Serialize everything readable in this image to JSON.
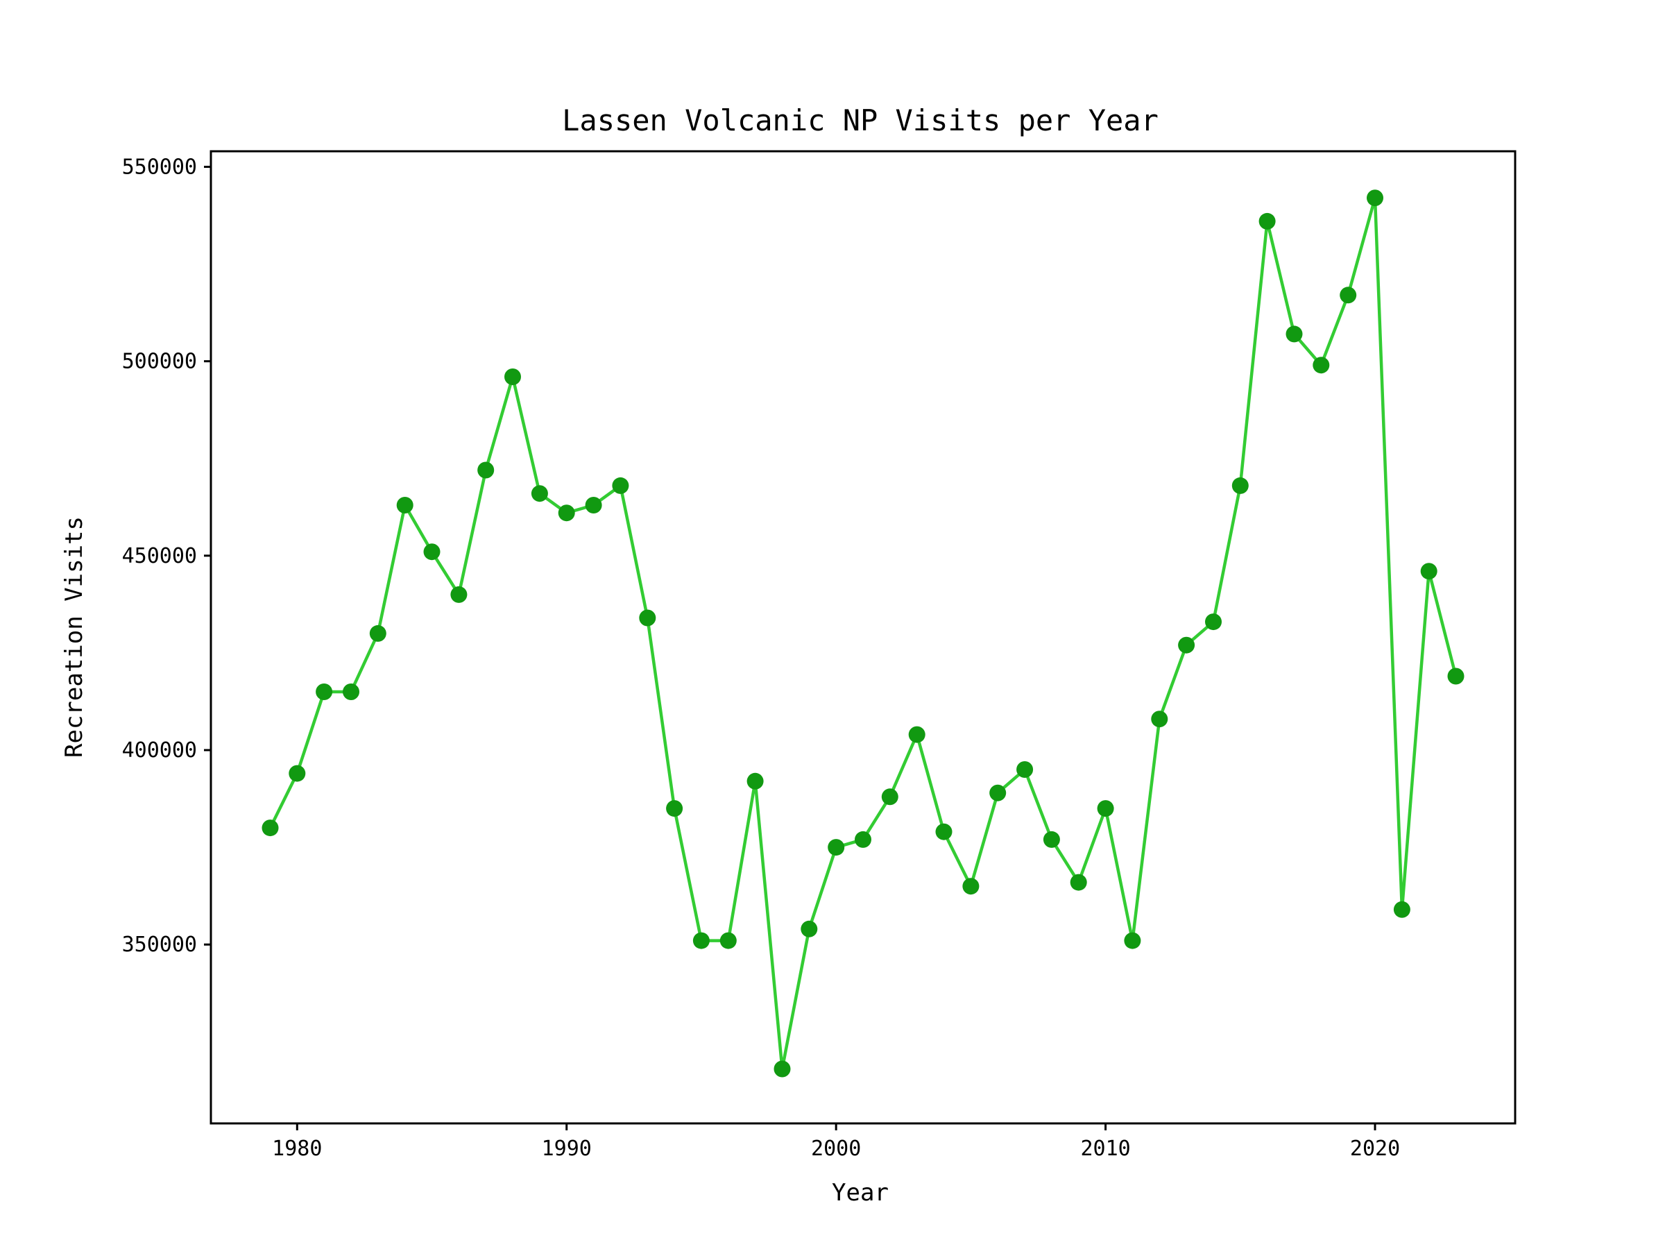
{
  "chart_data": {
    "type": "line",
    "title": "Lassen Volcanic NP Visits per Year",
    "xlabel": "Year",
    "ylabel": "Recreation Visits",
    "xlim": [
      1976.8,
      2025.2
    ],
    "ylim": [
      304000,
      554000
    ],
    "xticks": [
      1980,
      1990,
      2000,
      2010,
      2020
    ],
    "yticks": [
      350000,
      400000,
      450000,
      500000,
      550000
    ],
    "grid": false,
    "legend": "none",
    "line_color": "#33cc33",
    "marker_color": "#119911",
    "series": [
      {
        "x": [
          1979,
          1980,
          1981,
          1982,
          1983,
          1984,
          1985,
          1986,
          1987,
          1988,
          1989,
          1990,
          1991,
          1992,
          1993,
          1994,
          1995,
          1996,
          1997,
          1998,
          1999,
          2000,
          2001,
          2002,
          2003,
          2004,
          2005,
          2006,
          2007,
          2008,
          2009,
          2010,
          2011,
          2012,
          2013,
          2014,
          2015,
          2016,
          2017,
          2018,
          2019,
          2020,
          2021,
          2022,
          2023
        ],
        "y": [
          380000,
          394000,
          415000,
          415000,
          430000,
          463000,
          451000,
          440000,
          472000,
          496000,
          466000,
          461000,
          463000,
          468000,
          434000,
          385000,
          351000,
          351000,
          392000,
          318000,
          354000,
          375000,
          377000,
          388000,
          404000,
          379000,
          365000,
          389000,
          395000,
          377000,
          366000,
          385000,
          351000,
          408000,
          427000,
          433000,
          468000,
          536000,
          507000,
          499000,
          517000,
          542000,
          359000,
          446000,
          419000
        ]
      }
    ]
  }
}
